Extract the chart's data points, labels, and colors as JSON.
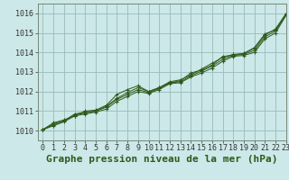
{
  "title": "Graphe pression niveau de la mer (hPa)",
  "background_color": "#b8d8d8",
  "plot_bg_color": "#cce8e8",
  "grid_color": "#99bbbb",
  "line_color": "#2d5a1b",
  "xlim": [
    -0.5,
    23
  ],
  "ylim": [
    1009.5,
    1016.5
  ],
  "xticks": [
    0,
    1,
    2,
    3,
    4,
    5,
    6,
    7,
    8,
    9,
    10,
    11,
    12,
    13,
    14,
    15,
    16,
    17,
    18,
    19,
    20,
    21,
    22,
    23
  ],
  "yticks": [
    1010,
    1011,
    1012,
    1013,
    1014,
    1015,
    1016
  ],
  "series": [
    [
      1010.05,
      1010.4,
      1010.55,
      1010.75,
      1011.0,
      1011.05,
      1011.3,
      1011.85,
      1012.1,
      1012.3,
      1012.0,
      1012.2,
      1012.45,
      1012.55,
      1012.95,
      1013.1,
      1013.35,
      1013.8,
      1013.85,
      1013.95,
      1014.25,
      1014.95,
      1015.15,
      1015.95
    ],
    [
      1010.05,
      1010.35,
      1010.5,
      1010.85,
      1010.95,
      1011.0,
      1011.25,
      1011.65,
      1011.95,
      1012.2,
      1012.0,
      1012.2,
      1012.5,
      1012.6,
      1012.85,
      1013.15,
      1013.45,
      1013.75,
      1013.9,
      1013.95,
      1014.2,
      1014.9,
      1015.2,
      1016.0
    ],
    [
      1010.05,
      1010.3,
      1010.5,
      1010.8,
      1010.9,
      1011.0,
      1011.2,
      1011.6,
      1011.85,
      1012.1,
      1011.95,
      1012.15,
      1012.45,
      1012.5,
      1012.8,
      1013.05,
      1013.3,
      1013.65,
      1013.85,
      1013.9,
      1014.1,
      1014.8,
      1015.1,
      1015.95
    ],
    [
      1010.05,
      1010.25,
      1010.45,
      1010.75,
      1010.85,
      1010.95,
      1011.1,
      1011.5,
      1011.75,
      1012.0,
      1011.9,
      1012.1,
      1012.4,
      1012.45,
      1012.75,
      1012.95,
      1013.2,
      1013.55,
      1013.8,
      1013.85,
      1014.0,
      1014.7,
      1015.0,
      1015.9
    ]
  ],
  "title_fontsize": 8,
  "tick_fontsize": 6,
  "figsize": [
    3.2,
    2.0
  ],
  "dpi": 100
}
